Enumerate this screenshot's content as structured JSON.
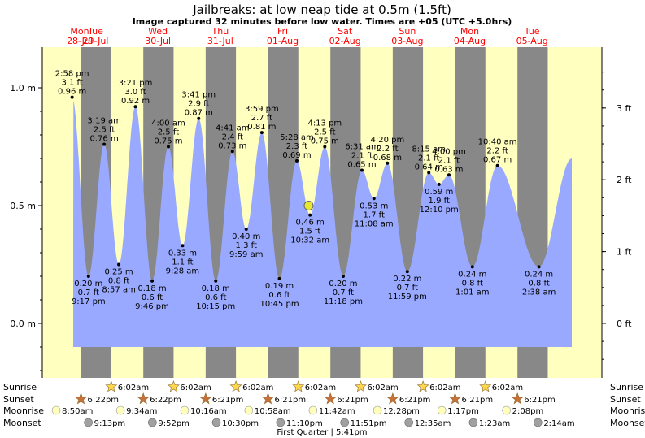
{
  "chart_data": {
    "type": "area",
    "title": "Jailbreaks: at low  neap tide at 0.5m (1.5ft)",
    "subtitle": "Image captured 32 minutes before low water. Times are +05 (UTC +5.0hrs)",
    "units_left": "m",
    "units_right": "ft",
    "y_range_m": [
      -0.25,
      1.18
    ],
    "left_ticks": [
      "0.0 m",
      "0.5 m",
      "1.0 m"
    ],
    "left_tick_values": [
      0.0,
      0.5,
      1.0
    ],
    "right_ticks": [
      "0 ft",
      "1 ft",
      "2 ft",
      "3 ft"
    ],
    "right_tick_values_ft": [
      0,
      1,
      2,
      3
    ],
    "days": [
      {
        "dow": "Mon",
        "date": "28-Jul"
      },
      {
        "dow": "Tue",
        "date": "29-Jul"
      },
      {
        "dow": "Wed",
        "date": "30-Jul"
      },
      {
        "dow": "Thu",
        "date": "31-Jul"
      },
      {
        "dow": "Fri",
        "date": "01-Aug"
      },
      {
        "dow": "Sat",
        "date": "02-Aug"
      },
      {
        "dow": "Sun",
        "date": "03-Aug"
      },
      {
        "dow": "Mon",
        "date": "04-Aug"
      },
      {
        "dow": "Tue",
        "date": "05-Aug"
      }
    ],
    "tides": [
      {
        "day": 0,
        "time": "2:58 pm",
        "h": 14.97,
        "m": 0.96,
        "ft": "3.1 ft",
        "type": "high"
      },
      {
        "day": 0,
        "time": "9:17 pm",
        "h": 21.28,
        "m": 0.2,
        "ft": "0.7 ft",
        "type": "low"
      },
      {
        "day": 1,
        "time": "3:19 am",
        "h": 3.32,
        "m": 0.76,
        "ft": "2.5 ft",
        "type": "high"
      },
      {
        "day": 1,
        "time": "8:57 am",
        "h": 8.95,
        "m": 0.25,
        "ft": "0.8 ft",
        "type": "low"
      },
      {
        "day": 1,
        "time": "3:21 pm",
        "h": 15.35,
        "m": 0.92,
        "ft": "3.0 ft",
        "type": "high"
      },
      {
        "day": 1,
        "time": "9:46 pm",
        "h": 21.77,
        "m": 0.18,
        "ft": "0.6 ft",
        "type": "low"
      },
      {
        "day": 2,
        "time": "4:00 am",
        "h": 4.0,
        "m": 0.75,
        "ft": "2.5 ft",
        "type": "high"
      },
      {
        "day": 2,
        "time": "9:28 am",
        "h": 9.47,
        "m": 0.33,
        "ft": "1.1 ft",
        "type": "low"
      },
      {
        "day": 2,
        "time": "3:41 pm",
        "h": 15.68,
        "m": 0.87,
        "ft": "2.9 ft",
        "type": "high"
      },
      {
        "day": 2,
        "time": "10:15 pm",
        "h": 22.25,
        "m": 0.18,
        "ft": "0.6 ft",
        "type": "low"
      },
      {
        "day": 3,
        "time": "4:41 am",
        "h": 4.68,
        "m": 0.73,
        "ft": "2.4 ft",
        "type": "high"
      },
      {
        "day": 3,
        "time": "9:59 am",
        "h": 9.98,
        "m": 0.4,
        "ft": "1.3 ft",
        "type": "low"
      },
      {
        "day": 3,
        "time": "3:59 pm",
        "h": 15.98,
        "m": 0.81,
        "ft": "2.7 ft",
        "type": "high"
      },
      {
        "day": 3,
        "time": "10:45 pm",
        "h": 22.75,
        "m": 0.19,
        "ft": "0.6 ft",
        "type": "low"
      },
      {
        "day": 4,
        "time": "5:28 am",
        "h": 5.47,
        "m": 0.69,
        "ft": "2.3 ft",
        "type": "high"
      },
      {
        "day": 4,
        "time": "10:32 am",
        "h": 10.53,
        "m": 0.46,
        "ft": "1.5 ft",
        "type": "low"
      },
      {
        "day": 4,
        "time": "4:13 pm",
        "h": 16.22,
        "m": 0.75,
        "ft": "2.5 ft",
        "type": "high"
      },
      {
        "day": 4,
        "time": "11:18 pm",
        "h": 23.3,
        "m": 0.2,
        "ft": "0.7 ft",
        "type": "low"
      },
      {
        "day": 5,
        "time": "6:31 am",
        "h": 6.52,
        "m": 0.65,
        "ft": "2.1 ft",
        "type": "high"
      },
      {
        "day": 5,
        "time": "11:08 am",
        "h": 11.13,
        "m": 0.53,
        "ft": "1.7 ft",
        "type": "low"
      },
      {
        "day": 5,
        "time": "4:20 pm",
        "h": 16.33,
        "m": 0.68,
        "ft": "2.2 ft",
        "type": "high"
      },
      {
        "day": 5,
        "time": "11:59 pm",
        "h": 23.98,
        "m": 0.22,
        "ft": "0.7 ft",
        "type": "low"
      },
      {
        "day": 6,
        "time": "8:15 am",
        "h": 8.25,
        "m": 0.64,
        "ft": "2.1 ft",
        "type": "high"
      },
      {
        "day": 6,
        "time": "12:10 pm",
        "h": 12.17,
        "m": 0.59,
        "ft": "1.9 ft",
        "type": "low"
      },
      {
        "day": 6,
        "time": "4:00 pm",
        "h": 16.0,
        "m": 0.63,
        "ft": "2.1 ft",
        "type": "high"
      },
      {
        "day": 7,
        "time": "1:01 am",
        "h": 1.02,
        "m": 0.24,
        "ft": "0.8 ft",
        "type": "low"
      },
      {
        "day": 7,
        "time": "10:40 am",
        "h": 10.67,
        "m": 0.67,
        "ft": "2.2 ft",
        "type": "high"
      },
      {
        "day": 8,
        "time": "2:38 am",
        "h": 2.63,
        "m": 0.24,
        "ft": "0.8 ft",
        "type": "low"
      }
    ],
    "current": {
      "time": "10:00 am",
      "h": 10.0,
      "day": 4,
      "m": 0.5
    },
    "sun": {
      "sunrise": [
        {
          "day": 1,
          "time": "6:02am"
        },
        {
          "day": 2,
          "time": "6:02am"
        },
        {
          "day": 3,
          "time": "6:02am"
        },
        {
          "day": 4,
          "time": "6:02am"
        },
        {
          "day": 5,
          "time": "6:02am"
        },
        {
          "day": 6,
          "time": "6:02am"
        },
        {
          "day": 7,
          "time": "6:02am"
        }
      ],
      "sunset": [
        {
          "day": 0,
          "time": "6:22pm"
        },
        {
          "day": 1,
          "time": "6:22pm"
        },
        {
          "day": 2,
          "time": "6:21pm"
        },
        {
          "day": 3,
          "time": "6:21pm"
        },
        {
          "day": 4,
          "time": "6:21pm"
        },
        {
          "day": 5,
          "time": "6:21pm"
        },
        {
          "day": 6,
          "time": "6:21pm"
        },
        {
          "day": 7,
          "time": "6:21pm"
        }
      ]
    },
    "moon": {
      "moonrise": [
        {
          "day": 0,
          "h": 8.83,
          "time": "8:50am"
        },
        {
          "day": 1,
          "h": 9.57,
          "time": "9:34am"
        },
        {
          "day": 2,
          "h": 10.27,
          "time": "10:16am"
        },
        {
          "day": 3,
          "h": 10.97,
          "time": "10:58am"
        },
        {
          "day": 4,
          "h": 11.7,
          "time": "11:42am"
        },
        {
          "day": 5,
          "h": 12.47,
          "time": "12:28pm"
        },
        {
          "day": 6,
          "h": 13.28,
          "time": "1:17pm"
        },
        {
          "day": 7,
          "h": 14.13,
          "time": "2:08pm"
        }
      ],
      "moonset": [
        {
          "day": 0,
          "h": 21.22,
          "time": "9:13pm"
        },
        {
          "day": 1,
          "h": 21.87,
          "time": "9:52pm"
        },
        {
          "day": 2,
          "h": 22.5,
          "time": "10:30pm"
        },
        {
          "day": 3,
          "h": 23.17,
          "time": "11:10pm"
        },
        {
          "day": 4,
          "h": 23.85,
          "time": "11:51pm"
        },
        {
          "day": 6,
          "h": 0.58,
          "time": "12:35am"
        },
        {
          "day": 7,
          "h": 1.38,
          "time": "1:23am"
        },
        {
          "day": 8,
          "h": 2.23,
          "time": "2:14am"
        }
      ],
      "phase_note": "First Quarter | 5:41pm"
    },
    "row_labels": {
      "sunrise": "Sunrise",
      "sunset": "Sunset",
      "moonrise": "Moonrise",
      "moonset": "Moonset"
    },
    "colors": {
      "water": "#99a9ff",
      "day": "#ffffc0",
      "night": "#888888",
      "day_label": "#ff0000",
      "sunrise_icon": "#ffd74d",
      "sunset_icon": "#c8703a",
      "moonrise_icon": "#ffffbb",
      "moonset_icon": "#a0a0a0",
      "marker": "#e6e633"
    }
  }
}
